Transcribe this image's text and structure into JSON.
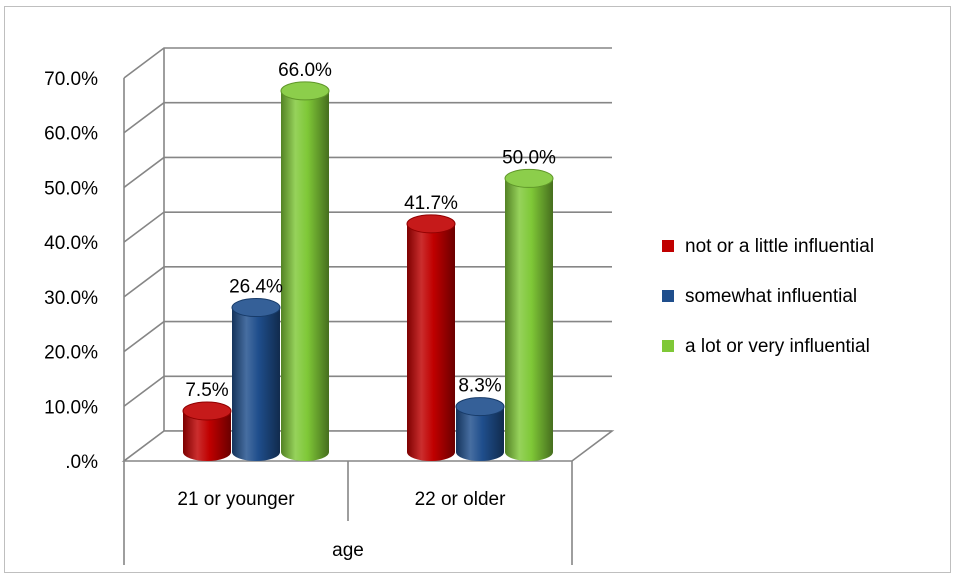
{
  "chart_data": {
    "type": "bar",
    "style": "3d-cylinder",
    "title": "",
    "xlabel": "age",
    "ylabel": "",
    "categories": [
      "21 or younger",
      "22 or older"
    ],
    "series": [
      {
        "name": "not or a little influential",
        "values": [
          7.5,
          41.7
        ],
        "color": "#c00000"
      },
      {
        "name": "somewhat influential",
        "values": [
          26.4,
          8.3
        ],
        "color": "#1f4e8c"
      },
      {
        "name": "a lot or very influential",
        "values": [
          66.0,
          50.0
        ],
        "color": "#7fc837"
      }
    ],
    "data_labels": [
      [
        "7.5%",
        "41.7%"
      ],
      [
        "26.4%",
        "8.3%"
      ],
      [
        "66.0%",
        "50.0%"
      ]
    ],
    "ylim": [
      0,
      70
    ],
    "yticks": [
      ".0%",
      "10.0%",
      "20.0%",
      "30.0%",
      "40.0%",
      "50.0%",
      "60.0%",
      "70.0%"
    ],
    "grid": true,
    "legend_position": "right"
  }
}
